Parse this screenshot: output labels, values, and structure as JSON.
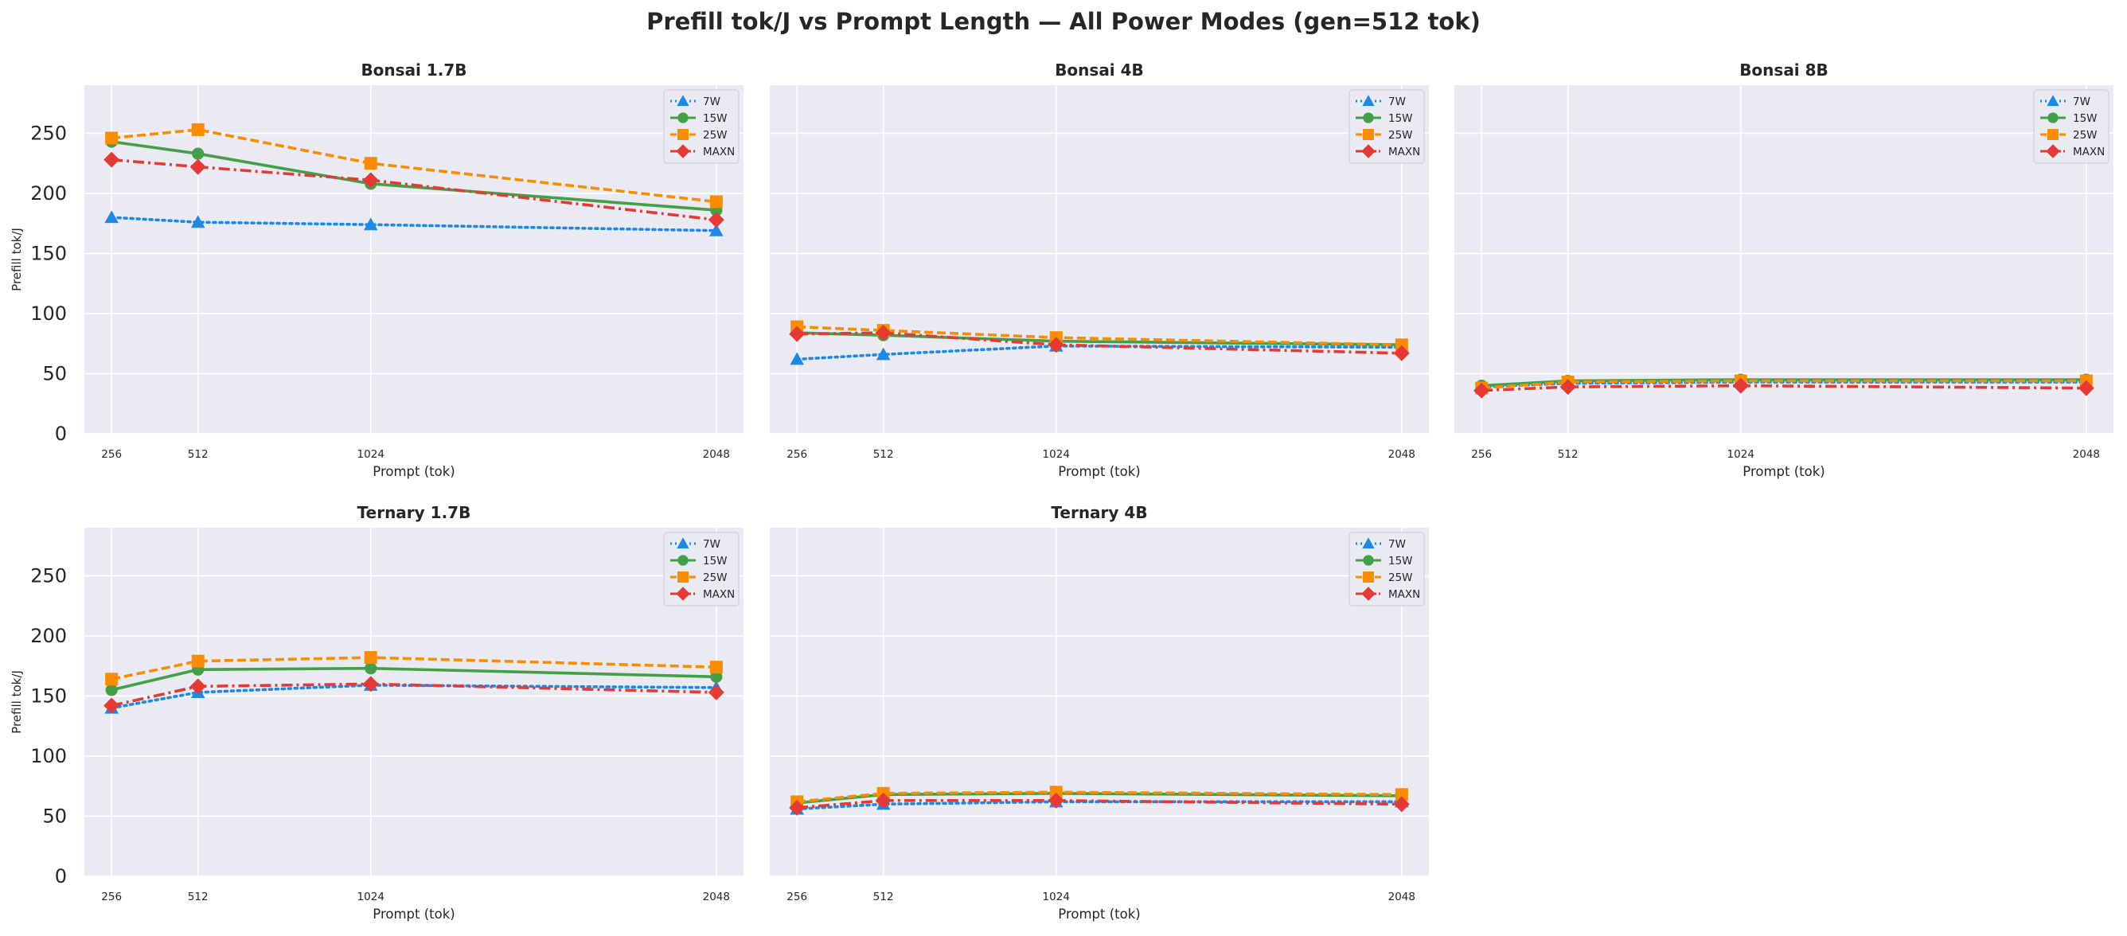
{
  "figure_title": "Prefill tok/J vs Prompt Length — All Power Modes (gen=512 tok)",
  "chart_data": [
    {
      "type": "line",
      "title": "Bonsai 1.7B",
      "xlabel": "Prompt (tok)",
      "ylabel": "Prefill tok/J",
      "x": [
        256,
        512,
        1024,
        2048
      ],
      "xticks": [
        "256",
        "512",
        "1024",
        "2048"
      ],
      "yticks": [
        "0",
        "50",
        "100",
        "150",
        "200",
        "250"
      ],
      "ylim": [
        0,
        290
      ],
      "grid": true,
      "legend_position": "top-right",
      "series": [
        {
          "name": "7W",
          "color": "#1e88e5",
          "style": "dotted",
          "marker": "triangle",
          "values": [
            180,
            176,
            174,
            169
          ]
        },
        {
          "name": "15W",
          "color": "#43a047",
          "style": "solid",
          "marker": "circle",
          "values": [
            243,
            233,
            208,
            186
          ]
        },
        {
          "name": "25W",
          "color": "#fb8c00",
          "style": "dashed",
          "marker": "square",
          "values": [
            246,
            253,
            225,
            193
          ]
        },
        {
          "name": "MAXN",
          "color": "#e53935",
          "style": "dashdot",
          "marker": "diamond",
          "values": [
            228,
            222,
            211,
            178
          ]
        }
      ]
    },
    {
      "type": "line",
      "title": "Bonsai 4B",
      "xlabel": "Prompt (tok)",
      "ylabel": "",
      "x": [
        256,
        512,
        1024,
        2048
      ],
      "xticks": [
        "256",
        "512",
        "1024",
        "2048"
      ],
      "yticks": [],
      "ylim": [
        0,
        290
      ],
      "grid": true,
      "legend_position": "top-right",
      "series": [
        {
          "name": "7W",
          "color": "#1e88e5",
          "style": "dotted",
          "marker": "triangle",
          "values": [
            62,
            66,
            73,
            72
          ]
        },
        {
          "name": "15W",
          "color": "#43a047",
          "style": "solid",
          "marker": "circle",
          "values": [
            84,
            82,
            77,
            74
          ]
        },
        {
          "name": "25W",
          "color": "#fb8c00",
          "style": "dashed",
          "marker": "square",
          "values": [
            89,
            86,
            80,
            74
          ]
        },
        {
          "name": "MAXN",
          "color": "#e53935",
          "style": "dashdot",
          "marker": "diamond",
          "values": [
            83,
            84,
            74,
            67
          ]
        }
      ]
    },
    {
      "type": "line",
      "title": "Bonsai 8B",
      "xlabel": "Prompt (tok)",
      "ylabel": "",
      "x": [
        256,
        512,
        1024,
        2048
      ],
      "xticks": [
        "256",
        "512",
        "1024",
        "2048"
      ],
      "yticks": [],
      "ylim": [
        0,
        290
      ],
      "grid": true,
      "legend_position": "top-right",
      "series": [
        {
          "name": "7W",
          "color": "#1e88e5",
          "style": "dotted",
          "marker": "triangle",
          "values": [
            39,
            42,
            43,
            43
          ]
        },
        {
          "name": "15W",
          "color": "#43a047",
          "style": "solid",
          "marker": "circle",
          "values": [
            40,
            44,
            45,
            45
          ]
        },
        {
          "name": "25W",
          "color": "#fb8c00",
          "style": "dashed",
          "marker": "square",
          "values": [
            38,
            43,
            44,
            44
          ]
        },
        {
          "name": "MAXN",
          "color": "#e53935",
          "style": "dashdot",
          "marker": "diamond",
          "values": [
            36,
            39,
            40,
            38
          ]
        }
      ]
    },
    {
      "type": "line",
      "title": "Ternary 1.7B",
      "xlabel": "Prompt (tok)",
      "ylabel": "Prefill tok/J",
      "x": [
        256,
        512,
        1024,
        2048
      ],
      "xticks": [
        "256",
        "512",
        "1024",
        "2048"
      ],
      "yticks": [
        "0",
        "50",
        "100",
        "150",
        "200",
        "250"
      ],
      "ylim": [
        0,
        290
      ],
      "grid": true,
      "legend_position": "top-right",
      "series": [
        {
          "name": "7W",
          "color": "#1e88e5",
          "style": "dotted",
          "marker": "triangle",
          "values": [
            140,
            153,
            159,
            157
          ]
        },
        {
          "name": "15W",
          "color": "#43a047",
          "style": "solid",
          "marker": "circle",
          "values": [
            155,
            172,
            173,
            166
          ]
        },
        {
          "name": "25W",
          "color": "#fb8c00",
          "style": "dashed",
          "marker": "square",
          "values": [
            164,
            179,
            182,
            174
          ]
        },
        {
          "name": "MAXN",
          "color": "#e53935",
          "style": "dashdot",
          "marker": "diamond",
          "values": [
            142,
            158,
            160,
            153
          ]
        }
      ]
    },
    {
      "type": "line",
      "title": "Ternary 4B",
      "xlabel": "Prompt (tok)",
      "ylabel": "",
      "x": [
        256,
        512,
        1024,
        2048
      ],
      "xticks": [
        "256",
        "512",
        "1024",
        "2048"
      ],
      "yticks": [],
      "ylim": [
        0,
        290
      ],
      "grid": true,
      "legend_position": "top-right",
      "series": [
        {
          "name": "7W",
          "color": "#1e88e5",
          "style": "dotted",
          "marker": "triangle",
          "values": [
            56,
            60,
            62,
            62
          ]
        },
        {
          "name": "15W",
          "color": "#43a047",
          "style": "solid",
          "marker": "circle",
          "values": [
            61,
            68,
            69,
            67
          ]
        },
        {
          "name": "25W",
          "color": "#fb8c00",
          "style": "dashed",
          "marker": "square",
          "values": [
            62,
            69,
            70,
            68
          ]
        },
        {
          "name": "MAXN",
          "color": "#e53935",
          "style": "dashdot",
          "marker": "diamond",
          "values": [
            57,
            63,
            63,
            60
          ]
        }
      ]
    }
  ]
}
